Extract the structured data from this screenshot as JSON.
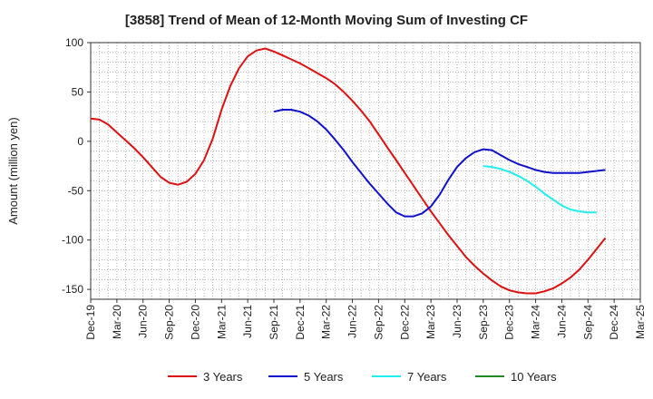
{
  "chart_data": {
    "type": "line",
    "title": "[3858]  Trend of Mean of 12-Month Moving Sum of Investing CF",
    "ylabel": "Amount (million yen)",
    "xlabel": "",
    "ylim": [
      -160,
      100
    ],
    "y_ticks": [
      100,
      50,
      0,
      -50,
      -100,
      -150
    ],
    "x_ticks": [
      "Dec-19",
      "Mar-20",
      "Jun-20",
      "Sep-20",
      "Dec-20",
      "Mar-21",
      "Jun-21",
      "Sep-21",
      "Dec-21",
      "Mar-22",
      "Jun-22",
      "Sep-22",
      "Dec-22",
      "Mar-23",
      "Jun-23",
      "Sep-23",
      "Dec-23",
      "Mar-24",
      "Jun-24",
      "Sep-24",
      "Dec-24",
      "Mar-25"
    ],
    "grid": true,
    "legend_position": "bottom",
    "series": [
      {
        "name": "3 Years",
        "color": "#dd1111",
        "start_index": 0,
        "values": [
          23,
          22,
          17,
          9,
          1,
          -7,
          -16,
          -26,
          -36,
          -42,
          -44,
          -41,
          -33,
          -19,
          3,
          32,
          56,
          74,
          86,
          92,
          94,
          91,
          87,
          83,
          79,
          74,
          69,
          64,
          58,
          50,
          41,
          31,
          20,
          7,
          -6,
          -19,
          -32,
          -45,
          -58,
          -71,
          -83,
          -95,
          -106,
          -117,
          -126,
          -134,
          -141,
          -147,
          -151,
          -153,
          -154,
          -154,
          -152,
          -149,
          -144,
          -138,
          -130,
          -120,
          -109,
          -98
        ]
      },
      {
        "name": "5 Years",
        "color": "#1111cc",
        "start_index": 21,
        "values": [
          30,
          32,
          32,
          30,
          26,
          20,
          12,
          2,
          -9,
          -21,
          -32,
          -43,
          -53,
          -63,
          -72,
          -76,
          -76,
          -73,
          -66,
          -54,
          -39,
          -26,
          -17,
          -11,
          -8,
          -9,
          -14,
          -19,
          -23,
          -26,
          -29,
          -31,
          -32,
          -32,
          -32,
          -32,
          -31,
          -30,
          -29
        ]
      },
      {
        "name": "7 Years",
        "color": "#22eeee",
        "start_index": 45,
        "values": [
          -25,
          -26,
          -28,
          -31,
          -35,
          -40,
          -46,
          -53,
          -59,
          -65,
          -69,
          -71,
          -72,
          -72
        ]
      },
      {
        "name": "10 Years",
        "color": "#228822",
        "start_index": 0,
        "values": []
      }
    ]
  }
}
